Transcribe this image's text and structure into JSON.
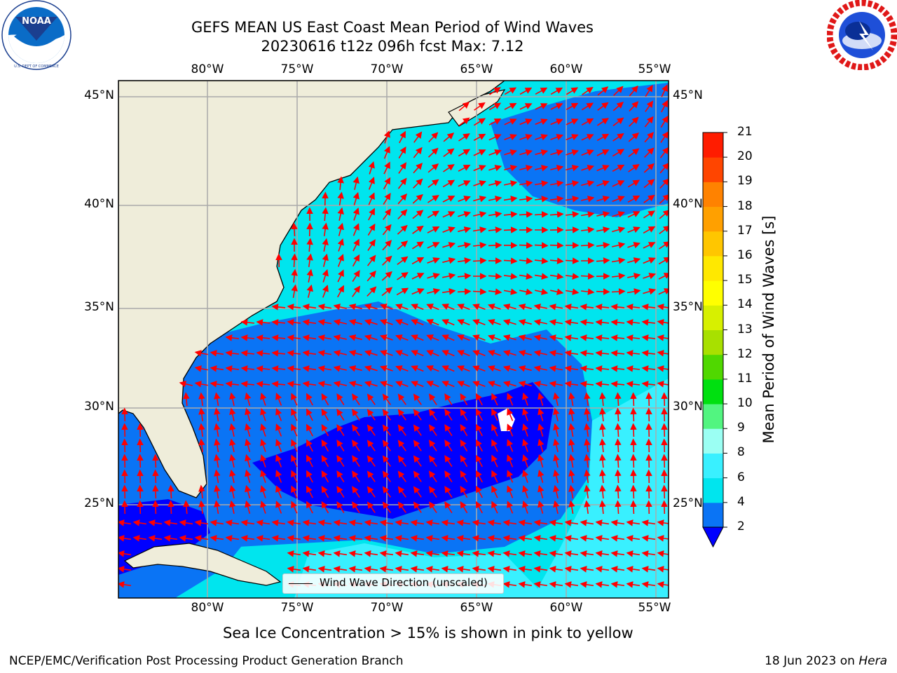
{
  "header": {
    "title_line1": "GEFS MEAN US East Coast Mean Period of Wind Waves",
    "title_line2": "20230616 t12z 096h fcst   Max: 7.12"
  },
  "logos": {
    "left": "noaa-logo",
    "right": "national-weather-service-logo"
  },
  "map": {
    "top_lon_labels": [
      "80°W",
      "75°W",
      "70°W",
      "65°W",
      "60°W",
      "55°W"
    ],
    "bottom_lon_labels": [
      "80°W",
      "75°W",
      "70°W",
      "65°W",
      "60°W",
      "55°W"
    ],
    "left_lat_labels": [
      "45°N",
      "40°N",
      "35°N",
      "30°N",
      "25°N"
    ],
    "right_lat_labels": [
      "45°N",
      "40°N",
      "35°N",
      "30°N",
      "25°N"
    ],
    "land_color": "#efedda",
    "arrow_color": "#ff0000",
    "legend_label": "Wind Wave Direction (unscaled)"
  },
  "colorbar": {
    "title": "Mean Period of Wind Waves [s]",
    "ticks": [
      "2",
      "4",
      "6",
      "8",
      "9",
      "10",
      "11",
      "12",
      "13",
      "14",
      "15",
      "16",
      "17",
      "18",
      "19",
      "20",
      "21"
    ],
    "colors": [
      "#0a74f5",
      "#00e5ee",
      "#39f0ff",
      "#9bfff3",
      "#52f580",
      "#00e010",
      "#50d800",
      "#a8e000",
      "#d7f000",
      "#ffff00",
      "#ffe800",
      "#ffc600",
      "#ffa000",
      "#ff8200",
      "#ff4500",
      "#ff1c00",
      "#ff0000"
    ],
    "under_color": "#0000ff"
  },
  "footnote": "Sea Ice Concentration > 15% is shown in pink to yellow",
  "footer": {
    "left": "NCEP/EMC/Verification Post Processing Product Generation Branch",
    "right_date": "18 Jun 2023 on",
    "right_host": "Hera"
  }
}
